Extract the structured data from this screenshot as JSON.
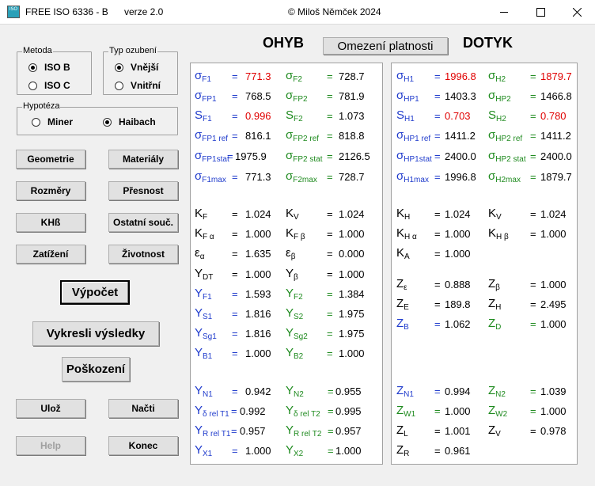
{
  "window": {
    "title_app": "FREE  ISO 6336 - B",
    "title_version": "verze 2.0",
    "title_copyright": "©  Miloš Němček  2024",
    "icon_text": "ISO"
  },
  "metoda": {
    "caption": "Metoda",
    "iso_b": "ISO  B",
    "iso_c": "ISO  C",
    "selected": "ISO B"
  },
  "typ": {
    "caption": "Typ ozubení",
    "vnejsi": "Vnější",
    "vnitrni": "Vnitřní",
    "selected": "Vnější"
  },
  "hypoteza": {
    "caption": "Hypotéza",
    "miner": "Miner",
    "haibach": "Haibach",
    "selected": "Haibach"
  },
  "buttons": {
    "geometrie": "Geometrie",
    "materialy": "Materiály",
    "rozmery": "Rozměry",
    "presnost": "Přesnost",
    "khb": "KHß",
    "ostatni": "Ostatní souč.",
    "zatizeni": "Zatížení",
    "zivotnost": "Životnost",
    "vypocet": "Výpočet",
    "vykresli": "Vykresli výsledky",
    "poskozeni": "Poškození",
    "uloz": "Ulož",
    "nacti": "Načti",
    "help": "Help",
    "konec": "Konec",
    "omezeni": "Omezení platnosti"
  },
  "headers": {
    "ohyb": "OHYB",
    "dotyk": "DOTYK"
  },
  "left_panel": {
    "r1": {
      "l_sym": "σ",
      "l_sub": "F1",
      "l_eq": "=",
      "l_val": "771.3",
      "r_sym": "σ",
      "r_sub": "F2",
      "r_eq": "=",
      "r_val": "728.7"
    },
    "r2": {
      "l_sym": "σ",
      "l_sub": "FP1",
      "l_eq": "=",
      "l_val": "768.5",
      "r_sym": "σ",
      "r_sub": "FP2",
      "r_eq": "=",
      "r_val": "781.9"
    },
    "r3": {
      "l_sym": "S",
      "l_sub": "F1",
      "l_eq": "=",
      "l_val": "0.996",
      "r_sym": "S",
      "r_sub": "F2",
      "r_eq": "=",
      "r_val": "1.073"
    },
    "r4": {
      "l_sym": "σ",
      "l_sub": "FP1 ref",
      "l_eq": "=",
      "l_val": "816.1",
      "r_sym": "σ",
      "r_sub": "FP2 ref",
      "r_eq": "=",
      "r_val": "818.8"
    },
    "r5": {
      "l_sym": "σ",
      "l_sub": "FP1stat",
      "l_eq": "=",
      "l_val": "1975.9",
      "r_sym": "σ",
      "r_sub": "FP2 stat",
      "r_eq": "=",
      "r_val": "2126.5"
    },
    "r6": {
      "l_sym": "σ",
      "l_sub": "F1max",
      "l_eq": "=",
      "l_val": "771.3",
      "r_sym": "σ",
      "r_sub": "F2max",
      "r_eq": "=",
      "r_val": "728.7"
    },
    "r7": {
      "l_sym": "K",
      "l_sub": "F",
      "l_eq": "=",
      "l_val": "1.024",
      "r_sym": "K",
      "r_sub": "V",
      "r_eq": "=",
      "r_val": "1.024"
    },
    "r8": {
      "l_sym": "K",
      "l_sub": "F α",
      "l_eq": "=",
      "l_val": "1.000",
      "r_sym": "K",
      "r_sub": "F β",
      "r_eq": "=",
      "r_val": "1.000"
    },
    "r9": {
      "l_sym": "ε",
      "l_sub": "α",
      "l_eq": "=",
      "l_val": "1.635",
      "r_sym": "ε",
      "r_sub": "β",
      "r_eq": "=",
      "r_val": "0.000"
    },
    "r10": {
      "l_sym": "Y",
      "l_sub": "DT",
      "l_eq": "=",
      "l_val": "1.000",
      "r_sym": "Y",
      "r_sub": "β",
      "r_eq": "=",
      "r_val": "1.000"
    },
    "r11": {
      "l_sym": "Y",
      "l_sub": "F1",
      "l_eq": "=",
      "l_val": "1.593",
      "r_sym": "Y",
      "r_sub": "F2",
      "r_eq": "=",
      "r_val": "1.384"
    },
    "r12": {
      "l_sym": "Y",
      "l_sub": "S1",
      "l_eq": "=",
      "l_val": "1.816",
      "r_sym": "Y",
      "r_sub": "S2",
      "r_eq": "=",
      "r_val": "1.975"
    },
    "r13": {
      "l_sym": "Y",
      "l_sub": "Sg1",
      "l_eq": "=",
      "l_val": "1.816",
      "r_sym": "Y",
      "r_sub": "Sg2",
      "r_eq": "=",
      "r_val": "1.975"
    },
    "r14": {
      "l_sym": "Y",
      "l_sub": "B1",
      "l_eq": "=",
      "l_val": "1.000",
      "r_sym": "Y",
      "r_sub": "B2",
      "r_eq": "=",
      "r_val": "1.000"
    },
    "r15": {
      "l_sym": "Y",
      "l_sub": "N1",
      "l_eq": "=",
      "l_val": "0.942",
      "r_sym": "Y",
      "r_sub": "N2",
      "r_eq": "=",
      "r_val": "0.955"
    },
    "r16": {
      "l_sym": "Y",
      "l_sub": "δ rel T1",
      "l_eq": "=",
      "l_val": "0.992",
      "r_sym": "Y",
      "r_sub": "δ rel T2",
      "r_eq": "=",
      "r_val": "0.995"
    },
    "r17": {
      "l_sym": "Y",
      "l_sub": "R rel T1",
      "l_eq": "=",
      "l_val": "0.957",
      "r_sym": "Y",
      "r_sub": "R rel T2",
      "r_eq": "=",
      "r_val": "0.957"
    },
    "r18": {
      "l_sym": "Y",
      "l_sub": "X1",
      "l_eq": "=",
      "l_val": "1.000",
      "r_sym": "Y",
      "r_sub": "X2",
      "r_eq": "=",
      "r_val": "1.000"
    }
  },
  "right_panel": {
    "r1": {
      "l_sym": "σ",
      "l_sub": "H1",
      "l_eq": "=",
      "l_val": "1996.8",
      "r_sym": "σ",
      "r_sub": "H2",
      "r_eq": "=",
      "r_val": "1879.7"
    },
    "r2": {
      "l_sym": "σ",
      "l_sub": "HP1",
      "l_eq": "=",
      "l_val": "1403.3",
      "r_sym": "σ",
      "r_sub": "HP2",
      "r_eq": "=",
      "r_val": "1466.8"
    },
    "r3": {
      "l_sym": "S",
      "l_sub": "H1",
      "l_eq": "=",
      "l_val": "0.703",
      "r_sym": "S",
      "r_sub": "H2",
      "r_eq": "=",
      "r_val": "0.780"
    },
    "r4": {
      "l_sym": "σ",
      "l_sub": "HP1 ref",
      "l_eq": "=",
      "l_val": "1411.2",
      "r_sym": "σ",
      "r_sub": "HP2 ref",
      "r_eq": "=",
      "r_val": "1411.2"
    },
    "r5": {
      "l_sym": "σ",
      "l_sub": "HP1stat",
      "l_eq": "=",
      "l_val": "2400.0",
      "r_sym": "σ",
      "r_sub": "HP2 stat",
      "r_eq": "=",
      "r_val": "2400.0"
    },
    "r6": {
      "l_sym": "σ",
      "l_sub": "H1max",
      "l_eq": "=",
      "l_val": "1996.8",
      "r_sym": "σ",
      "r_sub": "H2max",
      "r_eq": "=",
      "r_val": "1879.7"
    },
    "r7": {
      "l_sym": "K",
      "l_sub": "H",
      "l_eq": "=",
      "l_val": "1.024",
      "r_sym": "K",
      "r_sub": "V",
      "r_eq": "=",
      "r_val": "1.024"
    },
    "r8": {
      "l_sym": "K",
      "l_sub": "H α",
      "l_eq": "=",
      "l_val": "1.000",
      "r_sym": "K",
      "r_sub": "H β",
      "r_eq": "=",
      "r_val": "1.000"
    },
    "r9": {
      "l_sym": "K",
      "l_sub": "A",
      "l_eq": "=",
      "l_val": "1.000"
    },
    "r10": {
      "l_sym": "Z",
      "l_sub": "ε",
      "l_eq": "=",
      "l_val": "0.888",
      "r_sym": "Z",
      "r_sub": "β",
      "r_eq": "=",
      "r_val": "1.000"
    },
    "r11": {
      "l_sym": "Z",
      "l_sub": "E",
      "l_eq": "=",
      "l_val": "189.8",
      "r_sym": "Z",
      "r_sub": "H",
      "r_eq": "=",
      "r_val": "2.495"
    },
    "r12": {
      "l_sym": "Z",
      "l_sub": "B",
      "l_eq": "=",
      "l_val": "1.062",
      "r_sym": "Z",
      "r_sub": "D",
      "r_eq": "=",
      "r_val": "1.000"
    },
    "r13": {
      "l_sym": "Z",
      "l_sub": "N1",
      "l_eq": "=",
      "l_val": "0.994",
      "r_sym": "Z",
      "r_sub": "N2",
      "r_eq": "=",
      "r_val": "1.039"
    },
    "r14": {
      "l_sym": "Z",
      "l_sub": "W1",
      "l_eq": "=",
      "l_val": "1.000",
      "r_sym": "Z",
      "r_sub": "W2",
      "r_eq": "=",
      "r_val": "1.000"
    },
    "r15": {
      "l_sym": "Z",
      "l_sub": "L",
      "l_eq": "=",
      "l_val": "1.001",
      "r_sym": "Z",
      "r_sub": "V",
      "r_eq": "=",
      "r_val": "0.978"
    },
    "r16": {
      "l_sym": "Z",
      "l_sub": "R",
      "l_eq": "=",
      "l_val": "0.961"
    }
  },
  "colors": {
    "blue": "#1f3bcc",
    "green": "#1e8a1e",
    "red": "#e00000"
  }
}
